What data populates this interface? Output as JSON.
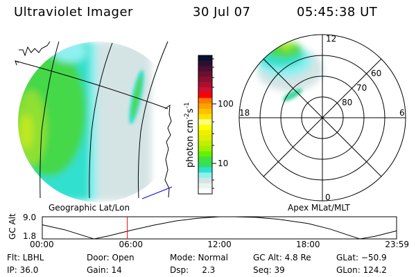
{
  "header": {
    "instrument": "Ultraviolet Imager",
    "date": "30 Jul 07",
    "time": "05:45:38 UT"
  },
  "geo_map": {
    "label": "Geographic Lat/Lon",
    "grid_color": "#000000",
    "track_color": "#0000ff"
  },
  "polar_map": {
    "label": "Apex MLat/MLT",
    "mlt_labels": {
      "top": "12",
      "left": "18",
      "right": "6",
      "bottom": "0"
    },
    "lat_labels": [
      "60",
      "70",
      "80"
    ]
  },
  "colorbar": {
    "label_base": "photon cm",
    "label_exp1": "-2",
    "label_mid": "s",
    "label_exp2": "-1",
    "tick_labels": [
      "100",
      "10"
    ],
    "scale": "log",
    "colors": [
      "#0a1030",
      "#2a1030",
      "#4a1030",
      "#6a1030",
      "#8a1030",
      "#aa1030",
      "#d01030",
      "#ff0000",
      "#ff7a00",
      "#ffa000",
      "#ffc000",
      "#ffe000",
      "#ffff80",
      "#ffff00",
      "#eef000",
      "#dcf000",
      "#c0f000",
      "#a0f000",
      "#64f000",
      "#44e040",
      "#30e060",
      "#30e0d0",
      "#90f0f0",
      "#d4e4e4",
      "#eaf4ee",
      "#ffffff"
    ]
  },
  "chart_data": {
    "type": "line",
    "ylabel": "GC Alt",
    "ytick_labels": [
      "9.0",
      "1.8"
    ],
    "ylim": [
      1.8,
      9.0
    ],
    "xtick_labels": [
      "00:00",
      "06:00",
      "12:00",
      "18:00",
      "23:59"
    ],
    "xlim": [
      0,
      24
    ],
    "x": [
      0,
      1.5,
      3.5,
      4.5,
      6,
      7.5,
      9,
      10.5,
      12,
      13,
      14.5,
      16,
      18,
      19.5,
      21.5,
      22.5,
      24
    ],
    "y": [
      6.4,
      4.8,
      1.8,
      2.8,
      4.6,
      6.2,
      7.6,
      8.5,
      9.0,
      9.0,
      8.8,
      8.2,
      6.8,
      5.0,
      1.8,
      2.6,
      4.4
    ],
    "marker_time": 5.76,
    "marker_color": "#ff0000",
    "line_color": "#000000"
  },
  "info": {
    "row1": [
      "Flt: LBHL",
      "Door: Open",
      "Mode: Normal",
      "GC Alt: 4.8 Re",
      "GLat: −50.9"
    ],
    "row2": [
      "IP: 36.0",
      "Gain: 14",
      "Dsp:     2.3",
      "Seq: 39",
      "GLon: 124.2"
    ]
  }
}
